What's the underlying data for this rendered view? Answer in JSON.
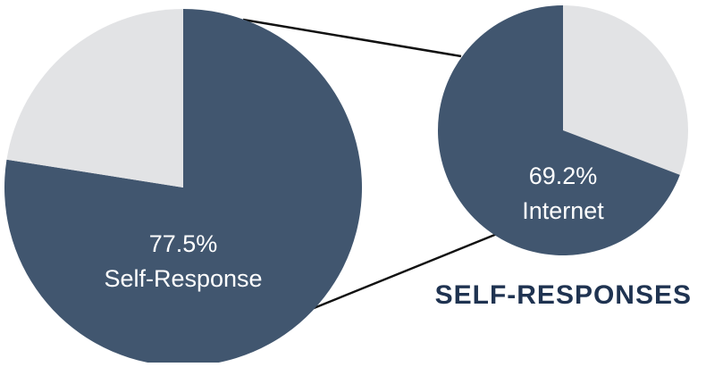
{
  "chart_data": {
    "type": "pie",
    "title": "SELF-RESPONSES",
    "colors": {
      "primary": "#41566f",
      "remainder": "#e2e3e5",
      "connector": "#111111",
      "title": "#1f3351",
      "label": "#ffffff"
    },
    "charts": [
      {
        "name": "overall",
        "slices": [
          {
            "value": 77.5,
            "value_label": "77.5%",
            "category": "Self-Response",
            "color": "#41566f"
          },
          {
            "value": 22.5,
            "color": "#e2e3e5"
          }
        ]
      },
      {
        "name": "breakdown",
        "slices": [
          {
            "value": 69.2,
            "value_label": "69.2%",
            "category": "Internet",
            "color": "#41566f"
          },
          {
            "value": 30.8,
            "color": "#e2e3e5"
          }
        ]
      }
    ]
  }
}
